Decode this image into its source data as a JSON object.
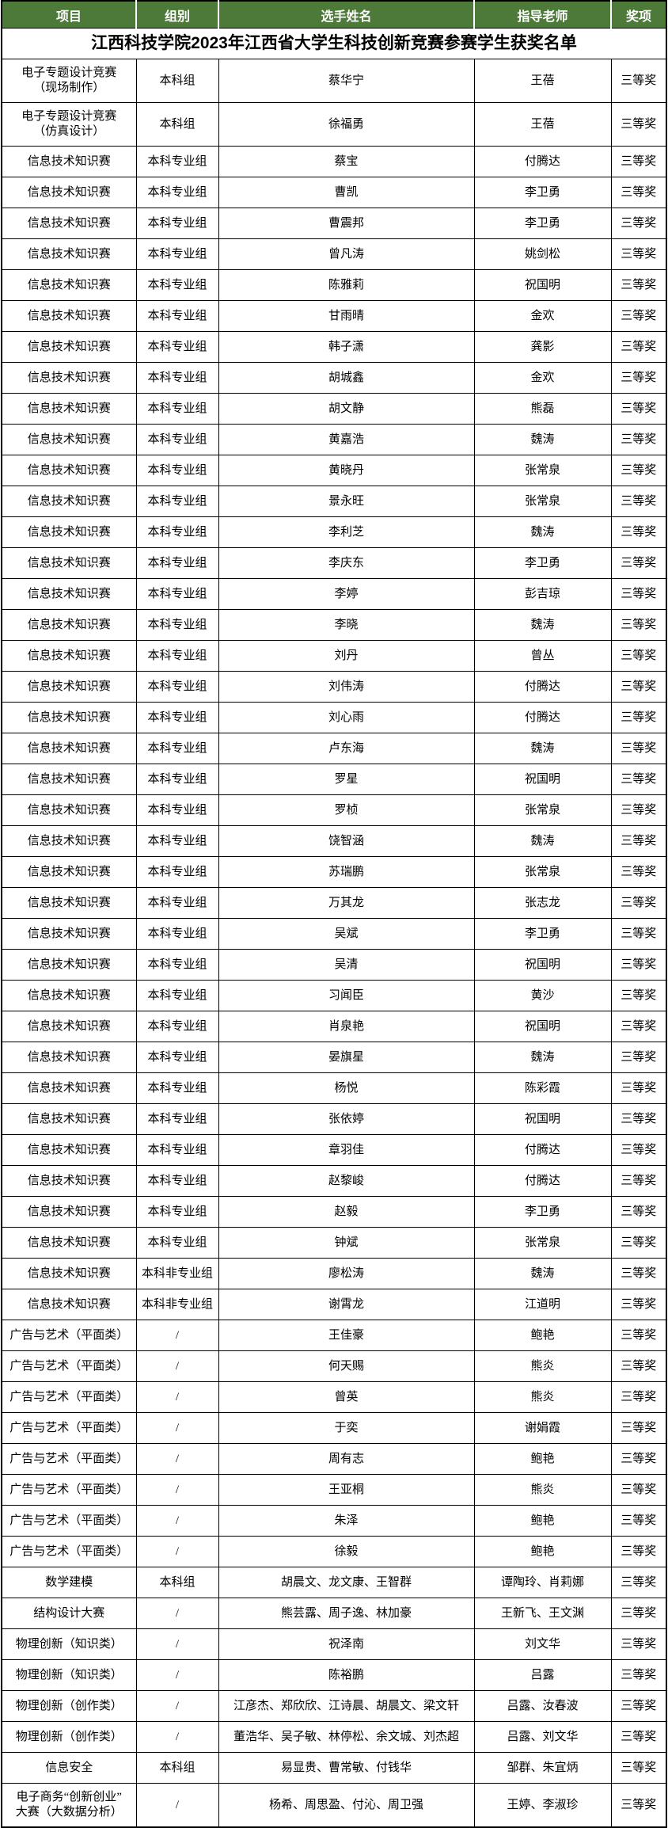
{
  "title": "江西科技学院2023年江西省大学生科技创新竞赛参赛学生获奖名单",
  "colors": {
    "header_bg": "#4d7a38",
    "header_text": "#ffffff",
    "border": "#000000",
    "page_bg": "#ffffff"
  },
  "table": {
    "columns": [
      "项目",
      "组别",
      "选手姓名",
      "指导老师",
      "奖项"
    ],
    "rows": [
      {
        "project": "电子专题设计竞赛\n（现场制作）",
        "group": "本科组",
        "students": "蔡华宁",
        "teachers": "王蓓",
        "award": "三等奖",
        "tall": true
      },
      {
        "project": "电子专题设计竞赛\n（仿真设计）",
        "group": "本科组",
        "students": "徐福勇",
        "teachers": "王蓓",
        "award": "三等奖",
        "tall": true
      },
      {
        "project": "信息技术知识赛",
        "group": "本科专业组",
        "students": "蔡宝",
        "teachers": "付腾达",
        "award": "三等奖"
      },
      {
        "project": "信息技术知识赛",
        "group": "本科专业组",
        "students": "曹凯",
        "teachers": "李卫勇",
        "award": "三等奖"
      },
      {
        "project": "信息技术知识赛",
        "group": "本科专业组",
        "students": "曹震邦",
        "teachers": "李卫勇",
        "award": "三等奖"
      },
      {
        "project": "信息技术知识赛",
        "group": "本科专业组",
        "students": "曾凡涛",
        "teachers": "姚剑松",
        "award": "三等奖"
      },
      {
        "project": "信息技术知识赛",
        "group": "本科专业组",
        "students": "陈雅莉",
        "teachers": "祝国明",
        "award": "三等奖"
      },
      {
        "project": "信息技术知识赛",
        "group": "本科专业组",
        "students": "甘雨晴",
        "teachers": "金欢",
        "award": "三等奖"
      },
      {
        "project": "信息技术知识赛",
        "group": "本科专业组",
        "students": "韩子潇",
        "teachers": "龚影",
        "award": "三等奖"
      },
      {
        "project": "信息技术知识赛",
        "group": "本科专业组",
        "students": "胡城鑫",
        "teachers": "金欢",
        "award": "三等奖"
      },
      {
        "project": "信息技术知识赛",
        "group": "本科专业组",
        "students": "胡文静",
        "teachers": "熊磊",
        "award": "三等奖"
      },
      {
        "project": "信息技术知识赛",
        "group": "本科专业组",
        "students": "黄嘉浩",
        "teachers": "魏涛",
        "award": "三等奖"
      },
      {
        "project": "信息技术知识赛",
        "group": "本科专业组",
        "students": "黄晓丹",
        "teachers": "张常泉",
        "award": "三等奖"
      },
      {
        "project": "信息技术知识赛",
        "group": "本科专业组",
        "students": "景永旺",
        "teachers": "张常泉",
        "award": "三等奖"
      },
      {
        "project": "信息技术知识赛",
        "group": "本科专业组",
        "students": "李利芝",
        "teachers": "魏涛",
        "award": "三等奖"
      },
      {
        "project": "信息技术知识赛",
        "group": "本科专业组",
        "students": "李庆东",
        "teachers": "李卫勇",
        "award": "三等奖"
      },
      {
        "project": "信息技术知识赛",
        "group": "本科专业组",
        "students": "李婷",
        "teachers": "彭吉琼",
        "award": "三等奖"
      },
      {
        "project": "信息技术知识赛",
        "group": "本科专业组",
        "students": "李晓",
        "teachers": "魏涛",
        "award": "三等奖"
      },
      {
        "project": "信息技术知识赛",
        "group": "本科专业组",
        "students": "刘丹",
        "teachers": "曾丛",
        "award": "三等奖"
      },
      {
        "project": "信息技术知识赛",
        "group": "本科专业组",
        "students": "刘伟涛",
        "teachers": "付腾达",
        "award": "三等奖"
      },
      {
        "project": "信息技术知识赛",
        "group": "本科专业组",
        "students": "刘心雨",
        "teachers": "付腾达",
        "award": "三等奖"
      },
      {
        "project": "信息技术知识赛",
        "group": "本科专业组",
        "students": "卢东海",
        "teachers": "魏涛",
        "award": "三等奖"
      },
      {
        "project": "信息技术知识赛",
        "group": "本科专业组",
        "students": "罗星",
        "teachers": "祝国明",
        "award": "三等奖"
      },
      {
        "project": "信息技术知识赛",
        "group": "本科专业组",
        "students": "罗桢",
        "teachers": "张常泉",
        "award": "三等奖"
      },
      {
        "project": "信息技术知识赛",
        "group": "本科专业组",
        "students": "饶智涵",
        "teachers": "魏涛",
        "award": "三等奖"
      },
      {
        "project": "信息技术知识赛",
        "group": "本科专业组",
        "students": "苏瑞鹏",
        "teachers": "张常泉",
        "award": "三等奖"
      },
      {
        "project": "信息技术知识赛",
        "group": "本科专业组",
        "students": "万其龙",
        "teachers": "张志龙",
        "award": "三等奖"
      },
      {
        "project": "信息技术知识赛",
        "group": "本科专业组",
        "students": "吴斌",
        "teachers": "李卫勇",
        "award": "三等奖"
      },
      {
        "project": "信息技术知识赛",
        "group": "本科专业组",
        "students": "吴清",
        "teachers": "祝国明",
        "award": "三等奖"
      },
      {
        "project": "信息技术知识赛",
        "group": "本科专业组",
        "students": "习闻臣",
        "teachers": "黄沙",
        "award": "三等奖"
      },
      {
        "project": "信息技术知识赛",
        "group": "本科专业组",
        "students": "肖泉艳",
        "teachers": "祝国明",
        "award": "三等奖"
      },
      {
        "project": "信息技术知识赛",
        "group": "本科专业组",
        "students": "晏旗星",
        "teachers": "魏涛",
        "award": "三等奖"
      },
      {
        "project": "信息技术知识赛",
        "group": "本科专业组",
        "students": "杨悦",
        "teachers": "陈彩霞",
        "award": "三等奖"
      },
      {
        "project": "信息技术知识赛",
        "group": "本科专业组",
        "students": "张依婷",
        "teachers": "祝国明",
        "award": "三等奖"
      },
      {
        "project": "信息技术知识赛",
        "group": "本科专业组",
        "students": "章羽佳",
        "teachers": "付腾达",
        "award": "三等奖"
      },
      {
        "project": "信息技术知识赛",
        "group": "本科专业组",
        "students": "赵黎峻",
        "teachers": "付腾达",
        "award": "三等奖"
      },
      {
        "project": "信息技术知识赛",
        "group": "本科专业组",
        "students": "赵毅",
        "teachers": "李卫勇",
        "award": "三等奖"
      },
      {
        "project": "信息技术知识赛",
        "group": "本科专业组",
        "students": "钟斌",
        "teachers": "张常泉",
        "award": "三等奖"
      },
      {
        "project": "信息技术知识赛",
        "group": "本科非专业组",
        "students": "廖松涛",
        "teachers": "魏涛",
        "award": "三等奖"
      },
      {
        "project": "信息技术知识赛",
        "group": "本科非专业组",
        "students": "谢霄龙",
        "teachers": "江道明",
        "award": "三等奖"
      },
      {
        "project": "广告与艺术（平面类）",
        "group": "/",
        "students": "王佳豪",
        "teachers": "鲍艳",
        "award": "三等奖"
      },
      {
        "project": "广告与艺术（平面类）",
        "group": "/",
        "students": "何天赐",
        "teachers": "熊炎",
        "award": "三等奖"
      },
      {
        "project": "广告与艺术（平面类）",
        "group": "/",
        "students": "曾英",
        "teachers": "熊炎",
        "award": "三等奖"
      },
      {
        "project": "广告与艺术（平面类）",
        "group": "/",
        "students": "于奕",
        "teachers": "谢娟霞",
        "award": "三等奖"
      },
      {
        "project": "广告与艺术（平面类）",
        "group": "/",
        "students": "周有志",
        "teachers": "鲍艳",
        "award": "三等奖"
      },
      {
        "project": "广告与艺术（平面类）",
        "group": "/",
        "students": "王亚桐",
        "teachers": "熊炎",
        "award": "三等奖"
      },
      {
        "project": "广告与艺术（平面类）",
        "group": "/",
        "students": "朱泽",
        "teachers": "鲍艳",
        "award": "三等奖"
      },
      {
        "project": "广告与艺术（平面类）",
        "group": "/",
        "students": "徐毅",
        "teachers": "鲍艳",
        "award": "三等奖"
      },
      {
        "project": "数学建模",
        "group": "本科组",
        "students": "胡晨文、龙文康、王智群",
        "teachers": "谭陶玲、肖莉娜",
        "award": "三等奖"
      },
      {
        "project": "结构设计大赛",
        "group": "/",
        "students": "熊芸露、周子逸、林加豪",
        "teachers": "王新飞、王文渊",
        "award": "三等奖"
      },
      {
        "project": "物理创新（知识类）",
        "group": "/",
        "students": "祝泽南",
        "teachers": "刘文华",
        "award": "三等奖"
      },
      {
        "project": "物理创新（知识类）",
        "group": "/",
        "students": "陈裕鹏",
        "teachers": "吕露",
        "award": "三等奖"
      },
      {
        "project": "物理创新（创作类）",
        "group": "/",
        "students": "江彦杰、郑欣欣、江诗晨、胡晨文、梁文轩",
        "teachers": "吕露、汝春波",
        "award": "三等奖"
      },
      {
        "project": "物理创新（创作类）",
        "group": "/",
        "students": "董浩华、吴子敏、林停松、余文城、刘杰超",
        "teachers": "吕露、刘文华",
        "award": "三等奖"
      },
      {
        "project": "信息安全",
        "group": "本科组",
        "students": "易显贵、曹常敏、付钱华",
        "teachers": "邹群、朱宜炳",
        "award": "三等奖"
      },
      {
        "project": "电子商务“创新创业”\n大赛（大数据分析）",
        "group": "/",
        "students": "杨希、周思盈、付沁、周卫强",
        "teachers": "王婷、李淑珍",
        "award": "三等奖",
        "tall": true
      }
    ]
  }
}
